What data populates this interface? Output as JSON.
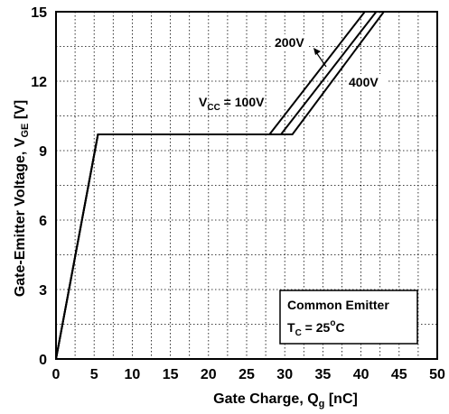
{
  "chart_data": {
    "type": "line",
    "xlabel": "Gate Charge, Q",
    "xlabel_sub": "g",
    "xlabel_unit": " [nC]",
    "ylabel": "Gate-Emitter Voltage, V",
    "ylabel_sub": "GE",
    "ylabel_unit": " [V]",
    "xlim": [
      0,
      50
    ],
    "ylim": [
      0,
      15
    ],
    "x_ticks": [
      0,
      5,
      10,
      15,
      20,
      25,
      30,
      35,
      40,
      45,
      50
    ],
    "y_ticks": [
      0,
      3,
      6,
      9,
      12,
      15
    ],
    "grid": true,
    "series": [
      {
        "name": "V_CC = 100V",
        "x": [
          0,
          5.5,
          28,
          40.5
        ],
        "y": [
          0,
          9.7,
          9.7,
          15
        ]
      },
      {
        "name": "200V",
        "x": [
          0,
          5.5,
          29.5,
          42
        ],
        "y": [
          0,
          9.7,
          9.7,
          15
        ]
      },
      {
        "name": "400V",
        "x": [
          0,
          5.5,
          31,
          43
        ],
        "y": [
          0,
          9.7,
          9.7,
          15
        ]
      }
    ],
    "annotations": {
      "vcc_prefix": "V",
      "vcc_sub": "CC",
      "vcc_suffix": " = 100V",
      "label_200": "200V",
      "label_400": "400V",
      "box_line1": "Common Emitter",
      "box_tc_prefix": "T",
      "box_tc_sub": "C",
      "box_tc_mid": " = 25",
      "box_tc_sup": "o",
      "box_tc_suffix": "C"
    }
  }
}
